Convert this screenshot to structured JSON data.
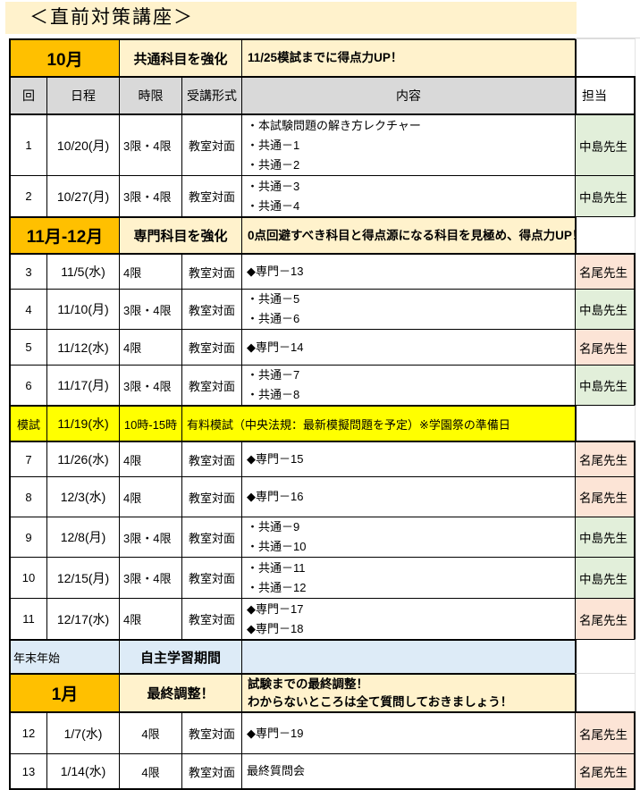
{
  "title": "＜直前対策講座＞",
  "colors": {
    "orange": "#FFC000",
    "cream": "#FFF2CC",
    "gray": "#D9D9D9",
    "green": "#E2EFDA",
    "pink": "#FCE4D6",
    "yellow": "#FFFF00",
    "blue": "#DDEBF7"
  },
  "table": {
    "rows": [
      {
        "kind": "section",
        "h": 42,
        "cells": [
          {
            "t": "10月",
            "span": 2
          },
          {
            "t": "共通科目を強化",
            "span": 2
          },
          {
            "t": "11/25模試までに得点力UP！",
            "span": 1
          },
          {
            "t": "",
            "span": 1
          }
        ]
      },
      {
        "kind": "header",
        "h": 42,
        "cells": [
          {
            "t": "回"
          },
          {
            "t": "日程"
          },
          {
            "t": "時限"
          },
          {
            "t": "受講形式"
          },
          {
            "t": "内容"
          },
          {
            "t": "担当"
          }
        ]
      },
      {
        "kind": "lesson",
        "h": 69,
        "cells": [
          {
            "t": "1"
          },
          {
            "t": "10/20(月)"
          },
          {
            "t": "3限・4限",
            "align": "left"
          },
          {
            "t": "教室対面"
          },
          {
            "lines": [
              "・本試験問題の解き方レクチャー",
              "・共通－1",
              "・共通－2"
            ]
          },
          {
            "t": "中島先生",
            "bg": "green"
          }
        ]
      },
      {
        "kind": "lesson",
        "h": 46,
        "cells": [
          {
            "t": "2"
          },
          {
            "t": "10/27(月)"
          },
          {
            "t": "3限・4限",
            "align": "left"
          },
          {
            "t": "教室対面"
          },
          {
            "lines": [
              "・共通－3",
              "・共通－4"
            ]
          },
          {
            "t": "中島先生",
            "bg": "green"
          }
        ]
      },
      {
        "kind": "section",
        "h": 41,
        "cells": [
          {
            "t": "11月-12月",
            "span": 2
          },
          {
            "t": "専門科目を強化",
            "span": 2
          },
          {
            "t": "0点回避すべき科目と得点源になる科目を見極め、得点力UP！",
            "span": 1
          },
          {
            "t": "",
            "span": 1
          }
        ]
      },
      {
        "kind": "lesson",
        "h": 40,
        "cells": [
          {
            "t": "3"
          },
          {
            "t": "11/5(水)"
          },
          {
            "t": "4限",
            "align": "left"
          },
          {
            "t": "教室対面"
          },
          {
            "t": "◆専門－13"
          },
          {
            "t": "名尾先生",
            "bg": "pink"
          }
        ]
      },
      {
        "kind": "lesson",
        "h": 45,
        "cells": [
          {
            "t": "4"
          },
          {
            "t": "11/10(月)"
          },
          {
            "t": "3限・4限",
            "align": "left"
          },
          {
            "t": "教室対面"
          },
          {
            "lines": [
              "・共通－5",
              "・共通－6"
            ]
          },
          {
            "t": "中島先生",
            "bg": "green"
          }
        ]
      },
      {
        "kind": "lesson",
        "h": 40,
        "cells": [
          {
            "t": "5"
          },
          {
            "t": "11/12(水)"
          },
          {
            "t": "4限",
            "align": "left"
          },
          {
            "t": "教室対面"
          },
          {
            "t": "◆専門－14"
          },
          {
            "t": "名尾先生",
            "bg": "pink"
          }
        ]
      },
      {
        "kind": "lesson",
        "h": 45,
        "cells": [
          {
            "t": "6"
          },
          {
            "t": "11/17(月)"
          },
          {
            "t": "3限・4限",
            "align": "left"
          },
          {
            "t": "教室対面"
          },
          {
            "lines": [
              "・共通－7",
              "・共通－8"
            ]
          },
          {
            "t": "中島先生",
            "bg": "green"
          }
        ]
      },
      {
        "kind": "exam",
        "h": 40,
        "cells": [
          {
            "t": "模試"
          },
          {
            "t": "11/19(水)"
          },
          {
            "t": "10時-15時"
          },
          {
            "t": "有料模試（中央法規：最新模擬問題を予定）※学園祭の準備日",
            "span": 2
          },
          {
            "t": "",
            "span": 1
          }
        ]
      },
      {
        "kind": "lesson",
        "h": 40,
        "cells": [
          {
            "t": "7"
          },
          {
            "t": "11/26(水)"
          },
          {
            "t": "4限",
            "align": "left"
          },
          {
            "t": "教室対面"
          },
          {
            "t": "◆専門－15"
          },
          {
            "t": "名尾先生",
            "bg": "pink"
          }
        ]
      },
      {
        "kind": "lesson",
        "h": 45,
        "cells": [
          {
            "t": "8"
          },
          {
            "t": "12/3(水)"
          },
          {
            "t": "4限",
            "align": "left"
          },
          {
            "t": "教室対面"
          },
          {
            "t": "◆専門－16"
          },
          {
            "t": "名尾先生",
            "bg": "pink"
          }
        ]
      },
      {
        "kind": "lesson",
        "h": 44,
        "cells": [
          {
            "t": "9"
          },
          {
            "t": "12/8(月)"
          },
          {
            "t": "3限・4限",
            "align": "left"
          },
          {
            "t": "教室対面"
          },
          {
            "lines": [
              "・共通－9",
              "・共通－10"
            ]
          },
          {
            "t": "中島先生",
            "bg": "green"
          }
        ]
      },
      {
        "kind": "lesson",
        "h": 46,
        "cells": [
          {
            "t": "10"
          },
          {
            "t": "12/15(月)"
          },
          {
            "t": "3限・4限",
            "align": "left"
          },
          {
            "t": "教室対面"
          },
          {
            "lines": [
              "・共通－11",
              "・共通－12"
            ]
          },
          {
            "t": "中島先生",
            "bg": "green"
          }
        ]
      },
      {
        "kind": "lesson",
        "h": 46,
        "cells": [
          {
            "t": "11"
          },
          {
            "t": "12/17(水)"
          },
          {
            "t": "4限",
            "align": "left"
          },
          {
            "t": "教室対面"
          },
          {
            "lines": [
              "◆専門－17",
              "◆専門－18"
            ]
          },
          {
            "t": "名尾先生",
            "bg": "pink"
          }
        ]
      },
      {
        "kind": "break",
        "h": 38,
        "cells": [
          {
            "t": "年末年始",
            "span": 2
          },
          {
            "t": "自主学習期間",
            "span": 2
          },
          {
            "t": "",
            "span": 1
          },
          {
            "t": "",
            "span": 1
          }
        ]
      },
      {
        "kind": "section",
        "h": 43,
        "cells": [
          {
            "t": "1月",
            "span": 2
          },
          {
            "t": "最終調整！",
            "span": 2
          },
          {
            "lines": [
              "試験までの最終調整！",
              "わからないところは全て質問しておきましょう！"
            ],
            "span": 1
          },
          {
            "t": "",
            "span": 1
          }
        ]
      },
      {
        "kind": "lesson",
        "h": 47,
        "cells": [
          {
            "t": "12"
          },
          {
            "t": "1/7(水)"
          },
          {
            "t": "4限",
            "align": "center"
          },
          {
            "t": "教室対面"
          },
          {
            "t": "◆専門－19"
          },
          {
            "t": "名尾先生",
            "bg": "pink"
          }
        ]
      },
      {
        "kind": "lesson",
        "h": 41,
        "cells": [
          {
            "t": "13"
          },
          {
            "t": "1/14(水)"
          },
          {
            "t": "4限",
            "align": "center"
          },
          {
            "t": "教室対面"
          },
          {
            "t": "最終質問会"
          },
          {
            "t": "名尾先生",
            "bg": "pink"
          }
        ]
      }
    ]
  }
}
